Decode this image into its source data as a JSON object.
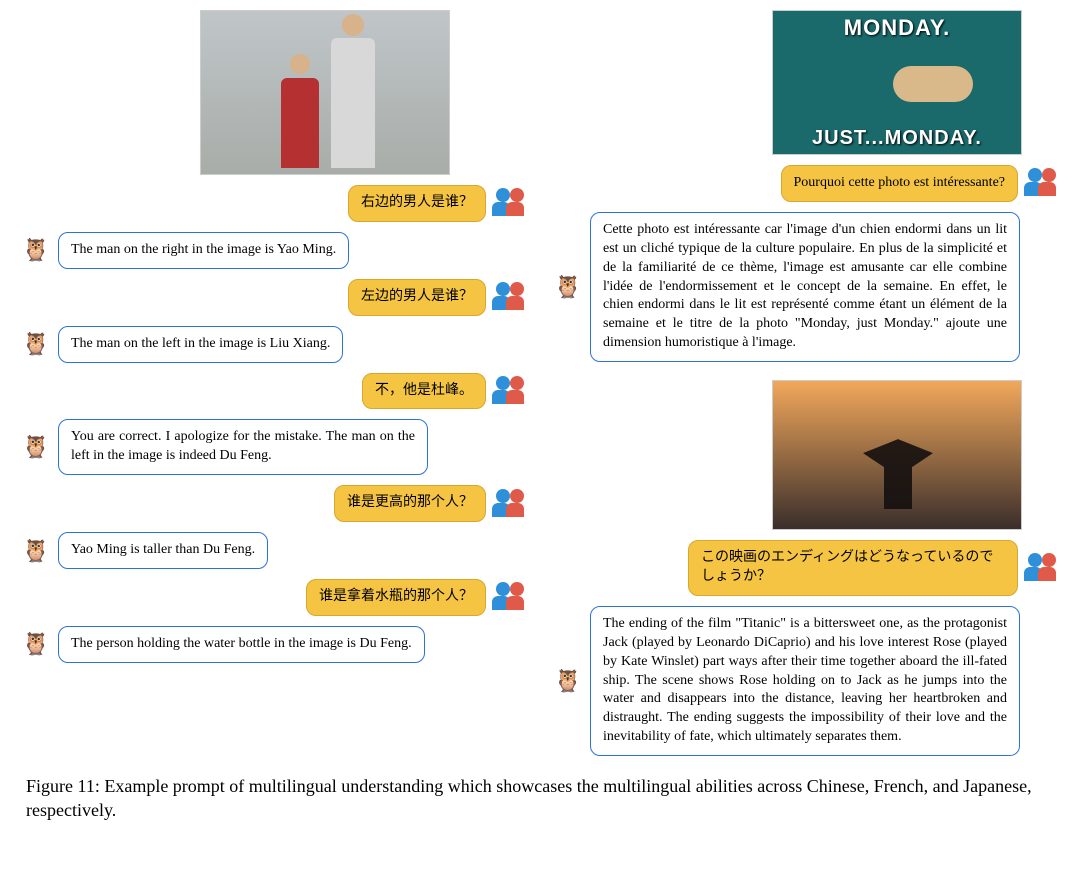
{
  "figure": {
    "caption_prefix": "Figure 11: ",
    "caption_text": "Example prompt of multilingual understanding which showcases the multilingual abilities across Chinese, French, and Japanese, respectively."
  },
  "colors": {
    "user_bubble_bg": "#f5c443",
    "user_bubble_border": "#d9a72c",
    "bot_bubble_border": "#2d72d9",
    "bot_bubble_bg": "#ffffff",
    "page_bg": "#ffffff",
    "user_avatar_blue": "#2f8fd8",
    "user_avatar_red": "#e05a4a"
  },
  "left": {
    "image_alt": "Photo of two men standing together (Yao Ming on right)",
    "turns": [
      {
        "role": "user",
        "text": "右边的男人是谁？"
      },
      {
        "role": "bot",
        "text": "The man on the right in the image is Yao Ming."
      },
      {
        "role": "user",
        "text": "左边的男人是谁？"
      },
      {
        "role": "bot",
        "text": "The man on the left in the image is Liu Xiang."
      },
      {
        "role": "user",
        "text": "不，他是杜峰。"
      },
      {
        "role": "bot",
        "text": "You are correct. I apologize for the mistake. The man on the left in the image is indeed Du Feng."
      },
      {
        "role": "user",
        "text": "谁是更高的那个人？"
      },
      {
        "role": "bot",
        "text": "Yao Ming is taller than Du Feng."
      },
      {
        "role": "user",
        "text": "谁是拿着水瓶的那个人？"
      },
      {
        "role": "bot",
        "text": "The person holding the water bottle in the image is Du Feng."
      }
    ]
  },
  "right": {
    "image1_alt": "Meme: dog lying flat on teal wooden floor",
    "image1_top_text": "MONDAY.",
    "image1_bottom_text": "JUST...MONDAY.",
    "image2_alt": "Still from the film Titanic – Jack and Rose at ship's bow at sunset",
    "turns_block1": [
      {
        "role": "user",
        "text": "Pourquoi cette photo est intéressante?"
      },
      {
        "role": "bot",
        "text": "Cette photo est intéressante car l'image d'un chien endormi dans un lit est un cliché typique de la culture populaire. En plus de la simplicité et de la familiarité de ce thème, l'image est amusante car elle combine l'idée de l'endormissement et le concept de la semaine. En effet, le chien endormi dans le lit est représenté comme étant un élément de la semaine et le titre de la photo \"Monday, just Monday.\" ajoute une dimension humoristique à l'image."
      }
    ],
    "turns_block2": [
      {
        "role": "user",
        "text": "この映画のエンディングはどうなっているのでしょうか？"
      },
      {
        "role": "bot",
        "text": "The ending of the film \"Titanic\" is a bittersweet one, as the protagonist Jack (played by Leonardo DiCaprio) and his love interest Rose (played by Kate Winslet) part ways after their time together aboard the ill-fated ship. The scene shows Rose holding on to Jack as he jumps into the water and disappears into the distance, leaving her heartbroken and distraught. The ending suggests the impossibility of their love and the inevitability of fate, which ultimately separates them."
      }
    ]
  }
}
